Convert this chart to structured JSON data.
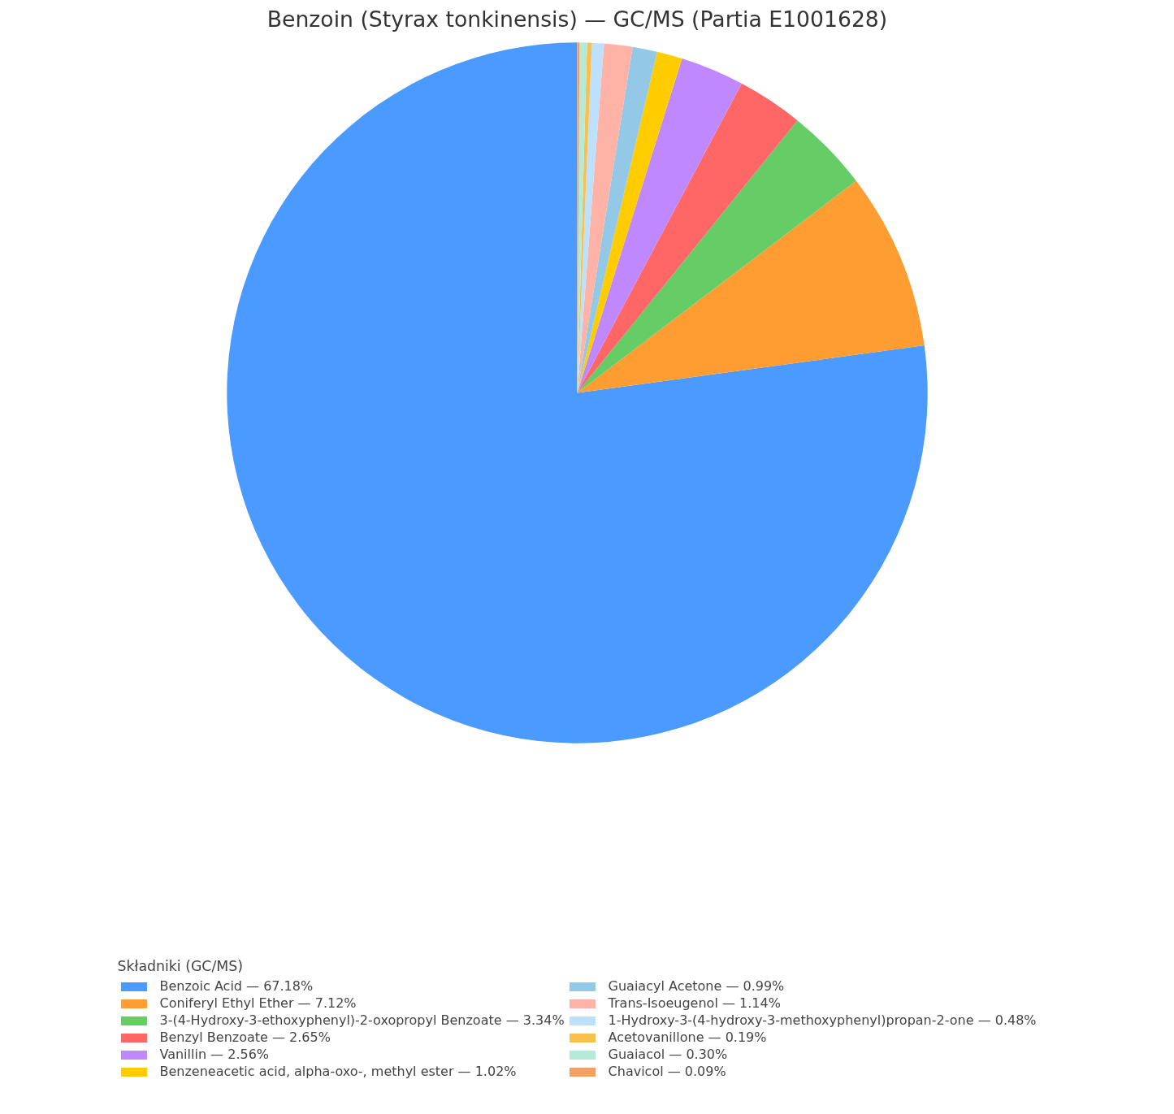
{
  "chart_data": {
    "type": "pie",
    "title": "Benzoin (Styrax tonkinensis) — GC/MS (Partia E1001628)",
    "legend_title": "Składniki (GC/MS)",
    "legend": "bottom",
    "categories": [
      "Benzoic Acid — 67.18%",
      "Coniferyl Ethyl Ether — 7.12%",
      "3-(4-Hydroxy-3-ethoxyphenyl)-2-oxopropyl Benzoate — 3.34%",
      "Benzyl Benzoate — 2.65%",
      "Vanillin — 2.56%",
      "Benzeneacetic acid, alpha-oxo-, methyl ester — 1.02%",
      "Guaiacyl Acetone — 0.99%",
      "Trans-Isoeugenol — 1.14%",
      "1-Hydroxy-3-(4-hydroxy-3-methoxyphenyl)propan-2-one — 0.48%",
      "Acetovanillone — 0.19%",
      "Guaiacol — 0.30%",
      "Chavicol — 0.09%"
    ],
    "values": [
      67.18,
      7.12,
      3.34,
      2.65,
      2.56,
      1.02,
      0.99,
      1.14,
      0.48,
      0.19,
      0.3,
      0.09
    ],
    "colors": [
      "#4a9aff",
      "#ff9d33",
      "#66cc66",
      "#ff6666",
      "#bf88ff",
      "#ffcc00",
      "#93c9e6",
      "#ffb3a7",
      "#bde0fc",
      "#f9c04f",
      "#b3ead8",
      "#f2a064"
    ]
  }
}
